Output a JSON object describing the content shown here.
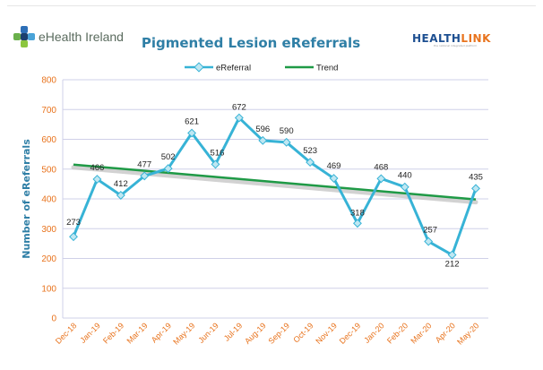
{
  "header": {
    "left_logo_text": "eHealth Ireland",
    "right_logo_part1": "HEALTH",
    "right_logo_part2": "LINK",
    "right_logo_tagline": "the national integrated platform"
  },
  "colors": {
    "series_line": "#37b3d6",
    "series_marker_fill": "#bfe7f2",
    "trend_line": "#1f9a46",
    "trend_shadow": "#c8c8c8",
    "grid": "#cfd0e8",
    "axis_text": "#e8731d",
    "title": "#2f7fa6"
  },
  "chart_data": {
    "type": "line",
    "title": "Pigmented Lesion eReferrals",
    "xlabel": "",
    "ylabel": "Number of eReferrals",
    "ylim": [
      0,
      800
    ],
    "yticks": [
      0,
      100,
      200,
      300,
      400,
      500,
      600,
      700,
      800
    ],
    "grid": true,
    "legend_position": "top",
    "categories": [
      "Dec-18",
      "Jan-19",
      "Feb-19",
      "Mar-19",
      "Apr-19",
      "May-19",
      "Jun-19",
      "Jul-19",
      "Aug-19",
      "Sep-19",
      "Oct-19",
      "Nov-19",
      "Dec-19",
      "Jan-20",
      "Feb-20",
      "Mar-20",
      "Apr-20",
      "May-20"
    ],
    "series": [
      {
        "name": "eReferral",
        "values": [
          273,
          466,
          412,
          477,
          502,
          621,
          516,
          672,
          596,
          590,
          523,
          469,
          318,
          468,
          440,
          257,
          212,
          435
        ],
        "data_labels": [
          "273",
          "466",
          "412",
          "477",
          "502",
          "621",
          "516",
          "672",
          "596",
          "590",
          "523",
          "469",
          "318",
          "468",
          "440",
          "257",
          "212",
          "435"
        ]
      },
      {
        "name": "Trend",
        "type": "linear-trend",
        "start_value": 515,
        "end_value": 398
      }
    ]
  }
}
